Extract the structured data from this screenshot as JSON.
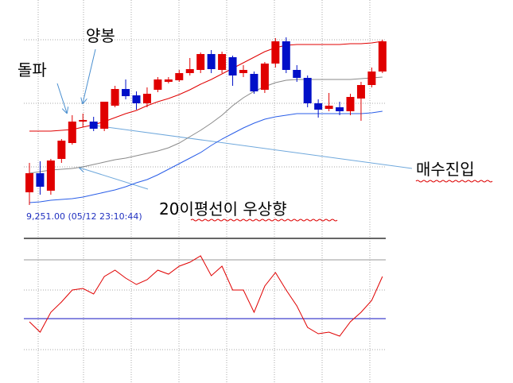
{
  "chart_data": [
    {
      "type": "candlestick",
      "open": [
        28,
        52,
        30,
        70,
        90,
        117,
        117,
        108,
        137,
        158,
        150,
        140,
        157,
        167,
        169,
        178,
        182,
        202,
        182,
        198,
        178,
        177,
        157,
        190,
        218,
        182,
        172,
        140,
        133,
        135,
        130,
        146,
        163,
        180
      ],
      "high": [
        65,
        67,
        70,
        95,
        125,
        127,
        123,
        142,
        162,
        170,
        155,
        160,
        173,
        173,
        182,
        197,
        204,
        207,
        205,
        200,
        188,
        180,
        192,
        222,
        223,
        188,
        175,
        145,
        153,
        142,
        152,
        167,
        185,
        220
      ],
      "low": [
        12,
        25,
        25,
        65,
        88,
        110,
        105,
        105,
        135,
        145,
        132,
        135,
        154,
        165,
        167,
        175,
        178,
        178,
        178,
        162,
        173,
        152,
        153,
        185,
        178,
        167,
        135,
        122,
        130,
        125,
        125,
        118,
        160,
        178
      ],
      "close": [
        52,
        35,
        68,
        93,
        117,
        119,
        108,
        142,
        158,
        149,
        140,
        152,
        170,
        170,
        178,
        183,
        202,
        183,
        202,
        175,
        182,
        155,
        190,
        218,
        182,
        172,
        140,
        132,
        137,
        130,
        148,
        163,
        180,
        218
      ],
      "up_color": "#e00000",
      "down_color": "#0010c8",
      "series": [
        {
          "color": "#e00000",
          "values": [
            105,
            105,
            105,
            106,
            107,
            110,
            113,
            117,
            122,
            127,
            131,
            137,
            142,
            146,
            151,
            157,
            164,
            170,
            177,
            184,
            191,
            198,
            205,
            210,
            213,
            214,
            214,
            214,
            214,
            214,
            215,
            215,
            216,
            218
          ]
        },
        {
          "color": "#8a8a8a",
          "values": [
            52,
            54,
            56,
            57,
            58,
            60,
            63,
            66,
            69,
            71,
            74,
            77,
            80,
            84,
            90,
            98,
            106,
            115,
            125,
            137,
            147,
            155,
            161,
            166,
            169,
            170,
            170,
            170,
            170,
            170,
            170,
            171,
            172,
            173
          ]
        },
        {
          "color": "#2a5ee8",
          "values": [
            15,
            16,
            18,
            19,
            20,
            22,
            25,
            28,
            31,
            35,
            40,
            44,
            50,
            57,
            64,
            71,
            78,
            87,
            95,
            102,
            109,
            115,
            120,
            123,
            125,
            127,
            127,
            127,
            127,
            127,
            127,
            127,
            128,
            130
          ]
        }
      ],
      "ylim": [
        0,
        270
      ],
      "yticks": [
        60,
        140,
        220
      ],
      "grid": true,
      "cursor_label": "9,251.00 (05/12 23:10:44)",
      "annotations": [
        "양봉",
        "돌파",
        "매수진입",
        "20이평선이 우상향"
      ]
    },
    {
      "type": "line",
      "series": [
        {
          "color": "#e00000",
          "values": [
            75,
            62,
            87,
            100,
            115,
            117,
            110,
            132,
            140,
            130,
            122,
            128,
            140,
            135,
            145,
            150,
            158,
            133,
            145,
            115,
            115,
            87,
            120,
            137,
            115,
            95,
            68,
            60,
            62,
            57,
            75,
            87,
            102,
            132
          ]
        }
      ],
      "hlines": [
        {
          "value": 153,
          "color": "#999999"
        },
        {
          "value": 79,
          "color": "#1010c0"
        }
      ],
      "ylim": [
        0,
        180
      ],
      "yticks": [
        40,
        115
      ],
      "grid": true
    }
  ]
}
